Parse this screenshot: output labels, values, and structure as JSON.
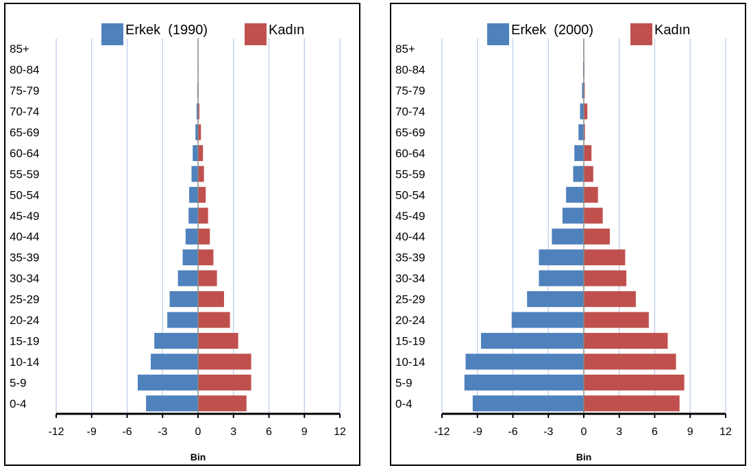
{
  "chart_data": [
    {
      "type": "bar",
      "orientation": "horizontal",
      "categories": [
        "0-4",
        "5-9",
        "10-14",
        "15-19",
        "20-24",
        "25-29",
        "30-34",
        "35-39",
        "40-44",
        "45-49",
        "50-54",
        "55-59",
        "60-64",
        "65-69",
        "70-74",
        "75-79",
        "80-84",
        "85+"
      ],
      "series": [
        {
          "name": "Erkek  (1990)",
          "color": "#4f81bd",
          "values": [
            -4.4,
            -5.1,
            -4.0,
            -3.7,
            -2.6,
            -2.4,
            -1.7,
            -1.3,
            -1.05,
            -0.8,
            -0.75,
            -0.55,
            -0.45,
            -0.22,
            -0.12,
            -0.05,
            -0.03,
            -0.02
          ]
        },
        {
          "name": "Kadın",
          "color": "#c0504d",
          "values": [
            4.1,
            4.5,
            4.5,
            3.4,
            2.7,
            2.2,
            1.6,
            1.3,
            1.0,
            0.85,
            0.65,
            0.5,
            0.42,
            0.25,
            0.12,
            0.05,
            0.04,
            0.02
          ]
        }
      ],
      "xticks": [
        "-12",
        "-9",
        "-6",
        "-3",
        "0",
        "3",
        "6",
        "9",
        "12"
      ],
      "xlim": [
        -12,
        12
      ],
      "xlabel": "Bin",
      "grid": "vertical",
      "legend": "top"
    },
    {
      "type": "bar",
      "orientation": "horizontal",
      "categories": [
        "0-4",
        "5-9",
        "10-14",
        "15-19",
        "20-24",
        "25-29",
        "30-34",
        "35-39",
        "40-44",
        "45-49",
        "50-54",
        "55-59",
        "60-64",
        "65-69",
        "70-74",
        "75-79",
        "80-84",
        "85+"
      ],
      "series": [
        {
          "name": "Erkek  (2000)",
          "color": "#4f81bd",
          "values": [
            -9.4,
            -10.1,
            -10.0,
            -8.7,
            -6.1,
            -4.8,
            -3.8,
            -3.8,
            -2.7,
            -1.8,
            -1.5,
            -0.9,
            -0.8,
            -0.45,
            -0.32,
            -0.15,
            -0.06,
            -0.04
          ]
        },
        {
          "name": "Kadın",
          "color": "#c0504d",
          "values": [
            8.1,
            8.5,
            7.8,
            7.1,
            5.5,
            4.4,
            3.6,
            3.5,
            2.2,
            1.6,
            1.2,
            0.8,
            0.65,
            0.1,
            0.3,
            0.08,
            0.05,
            0.03
          ]
        }
      ],
      "xticks": [
        "-12",
        "-9",
        "-6",
        "-3",
        "0",
        "3",
        "6",
        "9",
        "12"
      ],
      "xlim": [
        -12,
        12
      ],
      "xlabel": "Bin",
      "grid": "vertical",
      "legend": "top"
    }
  ]
}
